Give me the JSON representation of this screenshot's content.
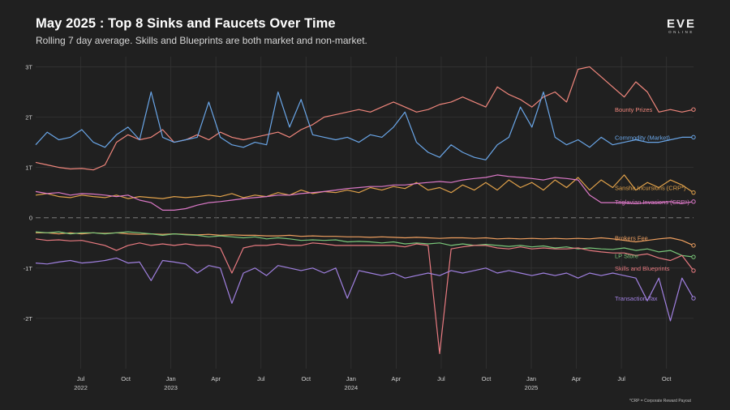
{
  "header": {
    "title": "May 2025 : Top 8 Sinks and Faucets Over Time",
    "subtitle": "Rolling 7 day average. Skills and Blueprints are both market and non-market."
  },
  "logo": {
    "text": "EVE",
    "subtext": "ONLINE"
  },
  "footnote": "*CRP = Corporate Reward Payout",
  "chart_data": {
    "type": "line",
    "title": "May 2025 : Top 8 Sinks and Faucets Over Time",
    "x_start": 2022.25,
    "x_end": 2025.9,
    "xlim": [
      2022.25,
      2025.9
    ],
    "ylim": [
      -3.0,
      3.2
    ],
    "y_ticks": [
      3,
      2,
      1,
      0,
      -1,
      -2
    ],
    "y_tick_labels": [
      "3T",
      "2T",
      "1T",
      "0",
      "-1T",
      "-2T"
    ],
    "x_ticks": [
      {
        "x": 2022.5,
        "label": "Jul",
        "year": "2022"
      },
      {
        "x": 2022.75,
        "label": "Oct",
        "year": ""
      },
      {
        "x": 2023.0,
        "label": "Jan",
        "year": "2023"
      },
      {
        "x": 2023.25,
        "label": "Apr",
        "year": ""
      },
      {
        "x": 2023.5,
        "label": "Jul",
        "year": ""
      },
      {
        "x": 2023.75,
        "label": "Oct",
        "year": ""
      },
      {
        "x": 2024.0,
        "label": "Jan",
        "year": "2024"
      },
      {
        "x": 2024.25,
        "label": "Apr",
        "year": ""
      },
      {
        "x": 2024.5,
        "label": "Jul",
        "year": ""
      },
      {
        "x": 2024.75,
        "label": "Oct",
        "year": ""
      },
      {
        "x": 2025.0,
        "label": "Jan",
        "year": "2025"
      },
      {
        "x": 2025.25,
        "label": "Apr",
        "year": ""
      },
      {
        "x": 2025.5,
        "label": "Jul",
        "year": ""
      },
      {
        "x": 2025.75,
        "label": "Oct",
        "year": ""
      }
    ],
    "unit": "ISK (trillions)",
    "series": [
      {
        "name": "Bounty Prizes",
        "color": "#f0867c",
        "label_y": 2.15,
        "values": [
          1.1,
          1.05,
          1.0,
          0.97,
          0.98,
          0.95,
          1.05,
          1.5,
          1.65,
          1.55,
          1.6,
          1.75,
          1.5,
          1.55,
          1.65,
          1.55,
          1.7,
          1.6,
          1.55,
          1.6,
          1.65,
          1.7,
          1.6,
          1.75,
          1.85,
          2.0,
          2.05,
          2.1,
          2.15,
          2.1,
          2.2,
          2.3,
          2.2,
          2.1,
          2.15,
          2.25,
          2.3,
          2.4,
          2.3,
          2.2,
          2.6,
          2.45,
          2.35,
          2.2,
          2.4,
          2.5,
          2.3,
          2.95,
          3.0,
          2.8,
          2.6,
          2.4,
          2.7,
          2.5,
          2.1,
          2.15,
          2.1,
          2.15
        ]
      },
      {
        "name": "Commodity (Market)",
        "color": "#6aa6e8",
        "label_y": 1.6,
        "values": [
          1.45,
          1.7,
          1.55,
          1.6,
          1.75,
          1.5,
          1.4,
          1.65,
          1.8,
          1.55,
          2.5,
          1.6,
          1.5,
          1.55,
          1.6,
          2.3,
          1.6,
          1.45,
          1.4,
          1.5,
          1.45,
          2.5,
          1.8,
          2.35,
          1.65,
          1.6,
          1.55,
          1.6,
          1.5,
          1.65,
          1.6,
          1.8,
          2.1,
          1.5,
          1.3,
          1.2,
          1.45,
          1.3,
          1.2,
          1.15,
          1.45,
          1.6,
          2.2,
          1.8,
          2.5,
          1.6,
          1.45,
          1.55,
          1.4,
          1.6,
          1.45,
          1.5,
          1.55,
          1.5,
          1.5,
          1.55,
          1.6,
          1.6
        ]
      },
      {
        "name": "Sansha Incursions (CRP*)",
        "color": "#e0a14a",
        "label_y": 0.6,
        "values": [
          0.45,
          0.48,
          0.42,
          0.4,
          0.45,
          0.42,
          0.4,
          0.45,
          0.38,
          0.42,
          0.4,
          0.38,
          0.42,
          0.4,
          0.42,
          0.45,
          0.42,
          0.48,
          0.4,
          0.45,
          0.42,
          0.5,
          0.45,
          0.55,
          0.48,
          0.52,
          0.5,
          0.55,
          0.5,
          0.6,
          0.55,
          0.62,
          0.58,
          0.7,
          0.55,
          0.6,
          0.5,
          0.65,
          0.55,
          0.7,
          0.55,
          0.75,
          0.6,
          0.7,
          0.55,
          0.75,
          0.6,
          0.8,
          0.55,
          0.75,
          0.6,
          0.85,
          0.55,
          0.7,
          0.6,
          0.75,
          0.65,
          0.5
        ]
      },
      {
        "name": "Triglavian Invasions (CRP*)",
        "color": "#dc79c8",
        "label_y": 0.32,
        "values": [
          0.52,
          0.48,
          0.5,
          0.45,
          0.48,
          0.47,
          0.45,
          0.42,
          0.45,
          0.35,
          0.3,
          0.15,
          0.15,
          0.18,
          0.25,
          0.3,
          0.32,
          0.35,
          0.38,
          0.4,
          0.42,
          0.45,
          0.45,
          0.48,
          0.5,
          0.52,
          0.55,
          0.58,
          0.6,
          0.62,
          0.62,
          0.65,
          0.65,
          0.68,
          0.7,
          0.72,
          0.7,
          0.75,
          0.78,
          0.8,
          0.85,
          0.82,
          0.8,
          0.78,
          0.75,
          0.8,
          0.78,
          0.75,
          0.45,
          0.3,
          0.3,
          0.3,
          0.28,
          0.3,
          0.3,
          0.32,
          0.28,
          0.32
        ]
      },
      {
        "name": "Brokers Fee",
        "color": "#f0a060",
        "label_y": -0.4,
        "values": [
          -0.3,
          -0.3,
          -0.32,
          -0.3,
          -0.32,
          -0.3,
          -0.31,
          -0.3,
          -0.32,
          -0.33,
          -0.32,
          -0.33,
          -0.32,
          -0.33,
          -0.34,
          -0.33,
          -0.35,
          -0.34,
          -0.35,
          -0.35,
          -0.36,
          -0.36,
          -0.35,
          -0.37,
          -0.36,
          -0.37,
          -0.37,
          -0.38,
          -0.38,
          -0.39,
          -0.38,
          -0.39,
          -0.4,
          -0.39,
          -0.4,
          -0.41,
          -0.4,
          -0.4,
          -0.41,
          -0.4,
          -0.42,
          -0.41,
          -0.42,
          -0.41,
          -0.42,
          -0.41,
          -0.42,
          -0.41,
          -0.42,
          -0.4,
          -0.42,
          -0.45,
          -0.48,
          -0.45,
          -0.42,
          -0.4,
          -0.45,
          -0.55
        ]
      },
      {
        "name": "LP Store",
        "color": "#7ac77a",
        "label_y": -0.75,
        "values": [
          -0.28,
          -0.3,
          -0.28,
          -0.32,
          -0.3,
          -0.3,
          -0.32,
          -0.3,
          -0.28,
          -0.3,
          -0.32,
          -0.35,
          -0.32,
          -0.34,
          -0.35,
          -0.38,
          -0.36,
          -0.38,
          -0.4,
          -0.38,
          -0.42,
          -0.4,
          -0.42,
          -0.45,
          -0.44,
          -0.45,
          -0.44,
          -0.48,
          -0.47,
          -0.48,
          -0.5,
          -0.48,
          -0.52,
          -0.5,
          -0.52,
          -0.5,
          -0.55,
          -0.52,
          -0.55,
          -0.53,
          -0.55,
          -0.57,
          -0.55,
          -0.58,
          -0.56,
          -0.6,
          -0.58,
          -0.62,
          -0.6,
          -0.62,
          -0.63,
          -0.6,
          -0.65,
          -0.62,
          -0.68,
          -0.65,
          -0.75,
          -0.78
        ]
      },
      {
        "name": "Skills and Blueprints",
        "color": "#e87a80",
        "label_y": -1.0,
        "values": [
          -0.42,
          -0.45,
          -0.44,
          -0.46,
          -0.45,
          -0.5,
          -0.55,
          -0.65,
          -0.55,
          -0.5,
          -0.55,
          -0.52,
          -0.55,
          -0.52,
          -0.55,
          -0.55,
          -0.6,
          -1.1,
          -0.6,
          -0.55,
          -0.55,
          -0.52,
          -0.55,
          -0.55,
          -0.5,
          -0.52,
          -0.55,
          -0.55,
          -0.55,
          -0.55,
          -0.55,
          -0.55,
          -0.58,
          -0.52,
          -0.55,
          -2.7,
          -0.62,
          -0.58,
          -0.55,
          -0.55,
          -0.6,
          -0.62,
          -0.58,
          -0.62,
          -0.6,
          -0.62,
          -0.62,
          -0.6,
          -0.65,
          -0.68,
          -0.7,
          -0.7,
          -0.75,
          -0.72,
          -0.8,
          -0.85,
          -0.75,
          -1.05
        ]
      },
      {
        "name": "Transaction Tax",
        "color": "#a080e0",
        "label_y": -1.6,
        "values": [
          -0.9,
          -0.92,
          -0.88,
          -0.85,
          -0.9,
          -0.88,
          -0.85,
          -0.8,
          -0.9,
          -0.88,
          -1.25,
          -0.85,
          -0.88,
          -0.92,
          -1.1,
          -0.95,
          -1.0,
          -1.7,
          -1.1,
          -1.0,
          -1.15,
          -0.95,
          -1.0,
          -1.05,
          -1.0,
          -1.1,
          -1.0,
          -1.6,
          -1.05,
          -1.1,
          -1.15,
          -1.1,
          -1.2,
          -1.15,
          -1.1,
          -1.15,
          -1.05,
          -1.1,
          -1.05,
          -1.0,
          -1.1,
          -1.05,
          -1.1,
          -1.15,
          -1.1,
          -1.15,
          -1.1,
          -1.2,
          -1.1,
          -1.15,
          -1.1,
          -1.15,
          -1.2,
          -1.65,
          -1.2,
          -2.05,
          -1.2,
          -1.6
        ]
      }
    ]
  }
}
